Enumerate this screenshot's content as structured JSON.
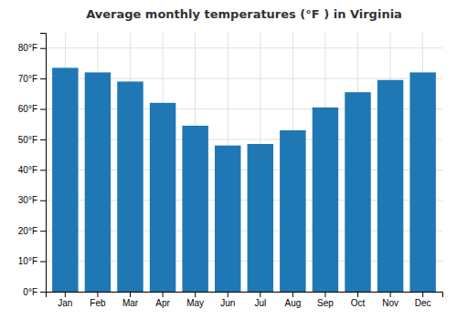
{
  "chart_data": {
    "type": "bar",
    "title": "Average monthly temperatures (°F ) in Virginia",
    "categories": [
      "Jan",
      "Feb",
      "Mar",
      "Apr",
      "May",
      "Jun",
      "Jul",
      "Aug",
      "Sep",
      "Oct",
      "Nov",
      "Dec"
    ],
    "values": [
      73.5,
      72.0,
      69.0,
      62.0,
      54.5,
      48.0,
      48.5,
      53.0,
      60.5,
      65.5,
      69.5,
      72.0
    ],
    "ylim": [
      0,
      85
    ],
    "yticks": [
      {
        "value": 0,
        "label": "0°F"
      },
      {
        "value": 10,
        "label": "10°F"
      },
      {
        "value": 20,
        "label": "20°F"
      },
      {
        "value": 30,
        "label": "30°F"
      },
      {
        "value": 40,
        "label": "40°F"
      },
      {
        "value": 50,
        "label": "50°F"
      },
      {
        "value": 60,
        "label": "60°F"
      },
      {
        "value": 70,
        "label": "70°F"
      },
      {
        "value": 80,
        "label": "80°F"
      }
    ],
    "grid": true
  }
}
